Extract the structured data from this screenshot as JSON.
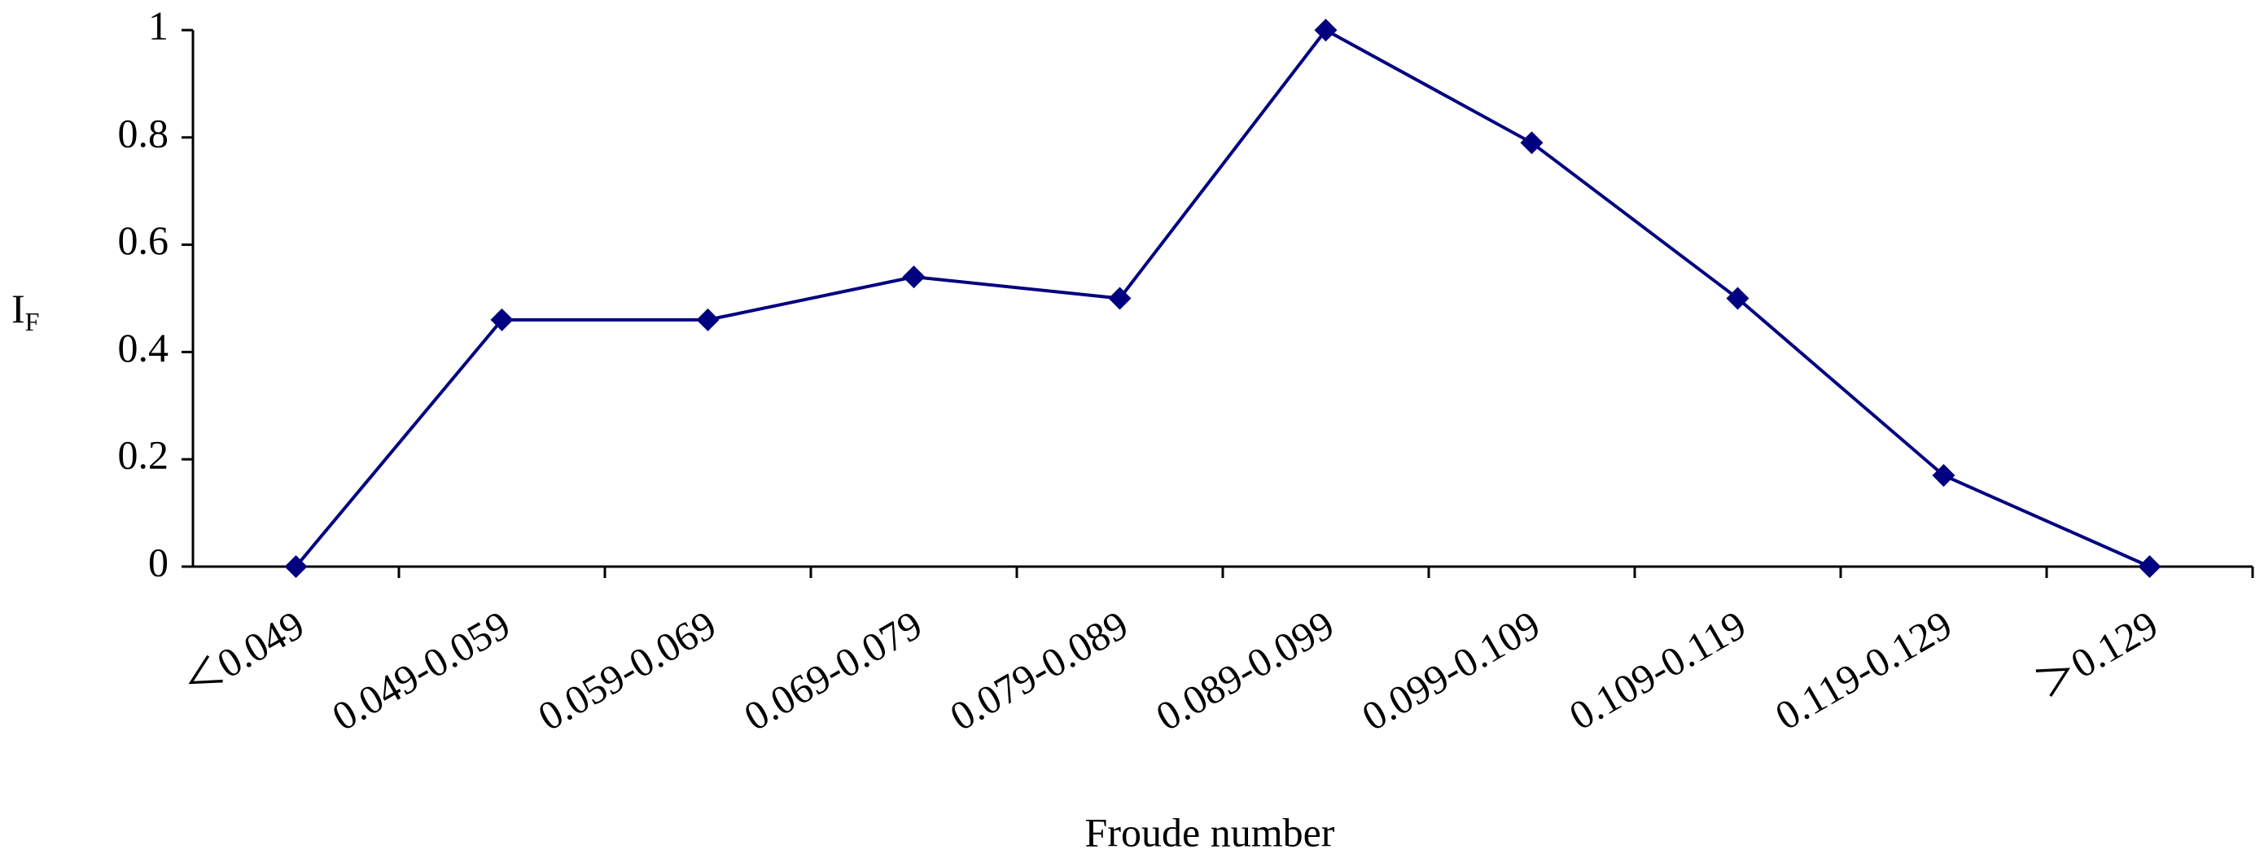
{
  "chart_data": {
    "type": "line",
    "xlabel": "Froude number",
    "ylabel": "I",
    "ylabel_subscript": "F",
    "categories": [
      "＜0.049",
      "0.049-0.059",
      "0.059-0.069",
      "0.069-0.079",
      "0.079-0.089",
      "0.089-0.099",
      "0.099-0.109",
      "0.109-0.119",
      "0.119-0.129",
      "＞0.129"
    ],
    "series": [
      {
        "color": "#000080",
        "values": [
          0,
          0.46,
          0.46,
          0.54,
          0.5,
          1,
          0.79,
          0.5,
          0.17,
          0
        ]
      }
    ],
    "ylim": [
      0,
      1
    ],
    "yticks": [
      0,
      0.2,
      0.4,
      0.6,
      0.8,
      1
    ],
    "grid": false
  }
}
